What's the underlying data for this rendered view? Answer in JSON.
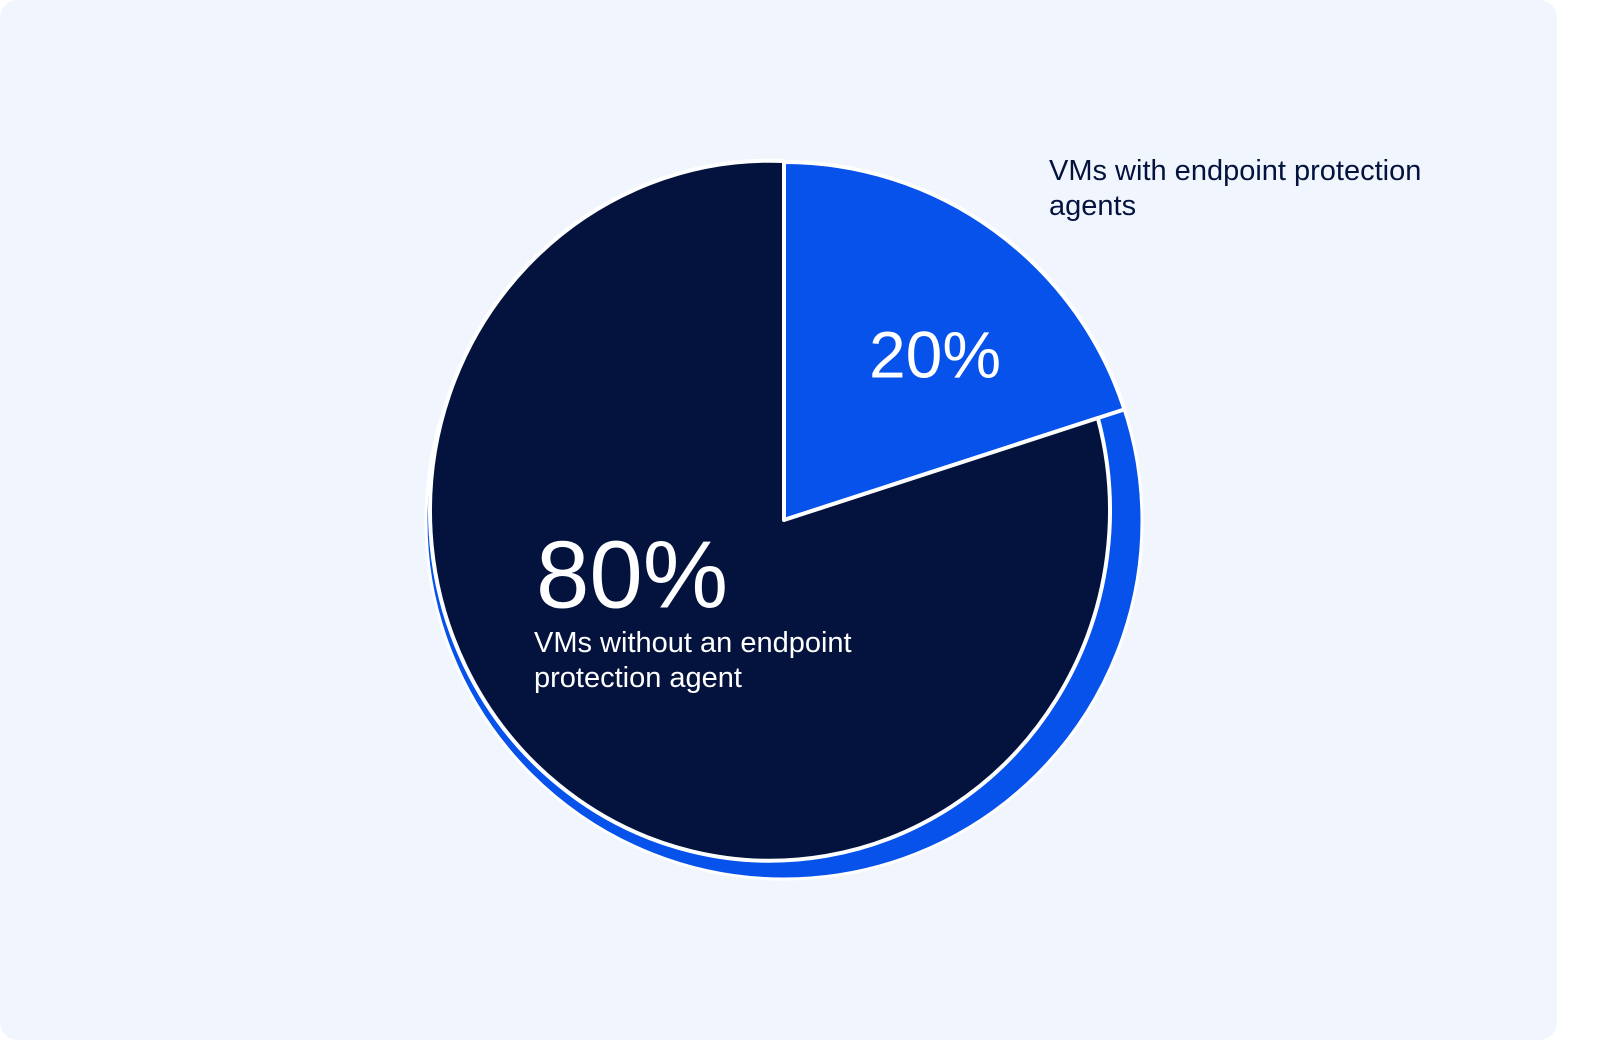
{
  "chart_data": {
    "type": "pie",
    "categories": [
      "VMs with endpoint protection agents",
      "VMs without an endpoint protection agent"
    ],
    "values": [
      20,
      80
    ],
    "value_labels": [
      "20%",
      "80%"
    ],
    "colors": [
      "#0652eb",
      "#03133d"
    ]
  }
}
